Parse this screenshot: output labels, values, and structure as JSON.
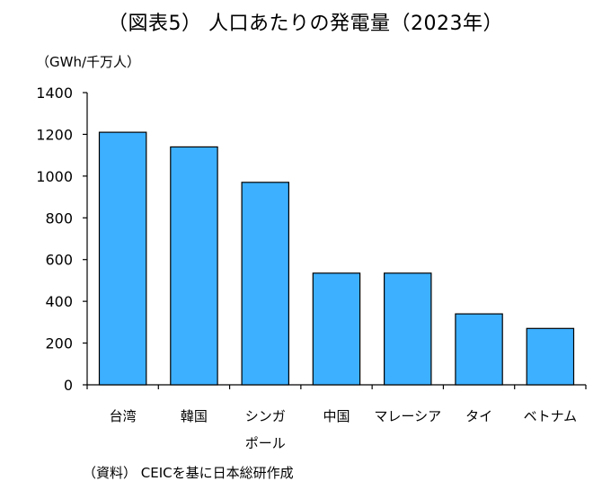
{
  "chart_data": {
    "type": "bar",
    "title": "（図表5） 人口あたりの発電量（2023年）",
    "ylabel": "（GWh/千万人）",
    "categories": [
      "台湾",
      "韓国",
      "シンガポール",
      "中国",
      "マレーシア",
      "タイ",
      "ベトナム"
    ],
    "category_lines": [
      [
        "台湾"
      ],
      [
        "韓国"
      ],
      [
        "シンガ",
        "ポール"
      ],
      [
        "中国"
      ],
      [
        "マレーシア"
      ],
      [
        "タイ"
      ],
      [
        "ベトナム"
      ]
    ],
    "values": [
      1210,
      1140,
      970,
      535,
      535,
      340,
      270
    ],
    "ylim": [
      0,
      1400
    ],
    "yticks": [
      0,
      200,
      400,
      600,
      800,
      1000,
      1200,
      1400
    ],
    "grid": false,
    "legend": "none",
    "source": "（資料） CEICを基に日本総研作成"
  },
  "colors": {
    "bar_fill": "#3DB0FF",
    "bar_stroke": "#000000",
    "axis": "#000000"
  }
}
